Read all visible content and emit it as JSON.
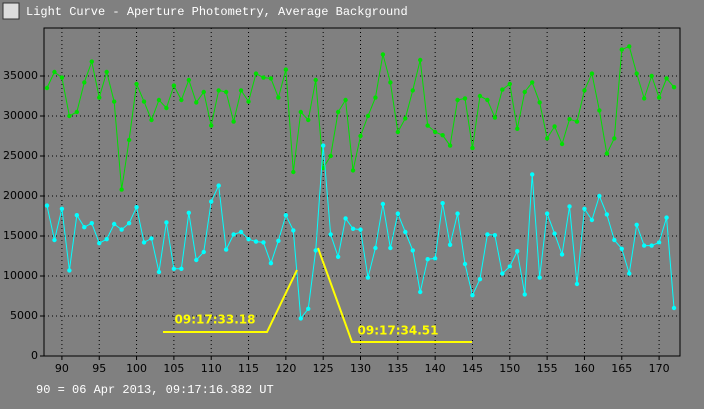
{
  "chart_data": {
    "type": "line",
    "title": "Light Curve - Aperture Photometry, Average Background",
    "note": "90 = 06 Apr 2013, 09:17:16.382 UT",
    "annotations": [
      "09:17:33.18",
      "09:17:34.51"
    ],
    "x": [
      88,
      89,
      90,
      91,
      92,
      93,
      94,
      95,
      96,
      97,
      98,
      99,
      100,
      101,
      102,
      103,
      104,
      105,
      106,
      107,
      108,
      109,
      110,
      111,
      112,
      113,
      114,
      115,
      116,
      117,
      118,
      119,
      120,
      121,
      122,
      123,
      124,
      125,
      126,
      127,
      128,
      129,
      130,
      131,
      132,
      133,
      134,
      135,
      136,
      137,
      138,
      139,
      140,
      141,
      142,
      143,
      144,
      145,
      146,
      147,
      148,
      149,
      150,
      151,
      152,
      153,
      154,
      155,
      156,
      157,
      158,
      159,
      160,
      161,
      162,
      163,
      164,
      165,
      166,
      167,
      168,
      169,
      170,
      171,
      172
    ],
    "series": [
      {
        "color": "#00e000",
        "values": [
          33500,
          35500,
          34800,
          30000,
          30500,
          34200,
          36800,
          32300,
          35500,
          31800,
          20800,
          27000,
          34000,
          31800,
          29500,
          32000,
          31000,
          33800,
          32000,
          34500,
          31700,
          33000,
          28800,
          33200,
          33000,
          29300,
          33200,
          31800,
          35300,
          34800,
          34700,
          32300,
          35800,
          23000,
          30500,
          29500,
          34500,
          23500,
          25000,
          30500,
          32000,
          23200,
          27500,
          30000,
          32300,
          37700,
          34200,
          28000,
          29700,
          33200,
          37000,
          28800,
          28000,
          27600,
          26300,
          32000,
          32200,
          26000,
          32500,
          32000,
          29800,
          33300,
          34000,
          28400,
          33000,
          34200,
          31700,
          27200,
          28700,
          26500,
          29600,
          29300,
          33200,
          35300,
          30700,
          25300,
          27200,
          38300,
          38700,
          35300,
          32200,
          35000,
          32300,
          34700,
          33600
        ]
      },
      {
        "color": "#00ffff",
        "values": [
          18800,
          14500,
          18400,
          10700,
          17600,
          16100,
          16600,
          14100,
          14600,
          16500,
          15800,
          16600,
          18600,
          14200,
          14700,
          10500,
          16700,
          10900,
          10900,
          17900,
          12000,
          13000,
          19300,
          21300,
          13300,
          15200,
          15500,
          14600,
          14300,
          14200,
          11600,
          14400,
          17600,
          15700,
          4700,
          5900,
          13200,
          26300,
          15200,
          12400,
          17200,
          15900,
          15800,
          9800,
          13500,
          19000,
          13500,
          17800,
          15500,
          13200,
          8000,
          12100,
          12200,
          19100,
          13900,
          17800,
          11500,
          7600,
          9600,
          15200,
          15100,
          10300,
          11200,
          13100,
          7700,
          22700,
          9800,
          17800,
          15300,
          12700,
          18700,
          9000,
          18400,
          17000,
          20000,
          17700,
          14500,
          13400,
          10300,
          16400,
          13800,
          13800,
          14200,
          17300,
          6000
        ]
      }
    ],
    "xlim": [
      87.6,
      172.8
    ],
    "xticks": [
      90,
      95,
      100,
      105,
      110,
      115,
      120,
      125,
      130,
      135,
      140,
      145,
      150,
      155,
      160,
      165,
      170
    ],
    "ylim": [
      0,
      41000
    ],
    "yticks": [
      0,
      5000,
      10000,
      15000,
      20000,
      25000,
      30000,
      35000
    ],
    "grid": true
  }
}
